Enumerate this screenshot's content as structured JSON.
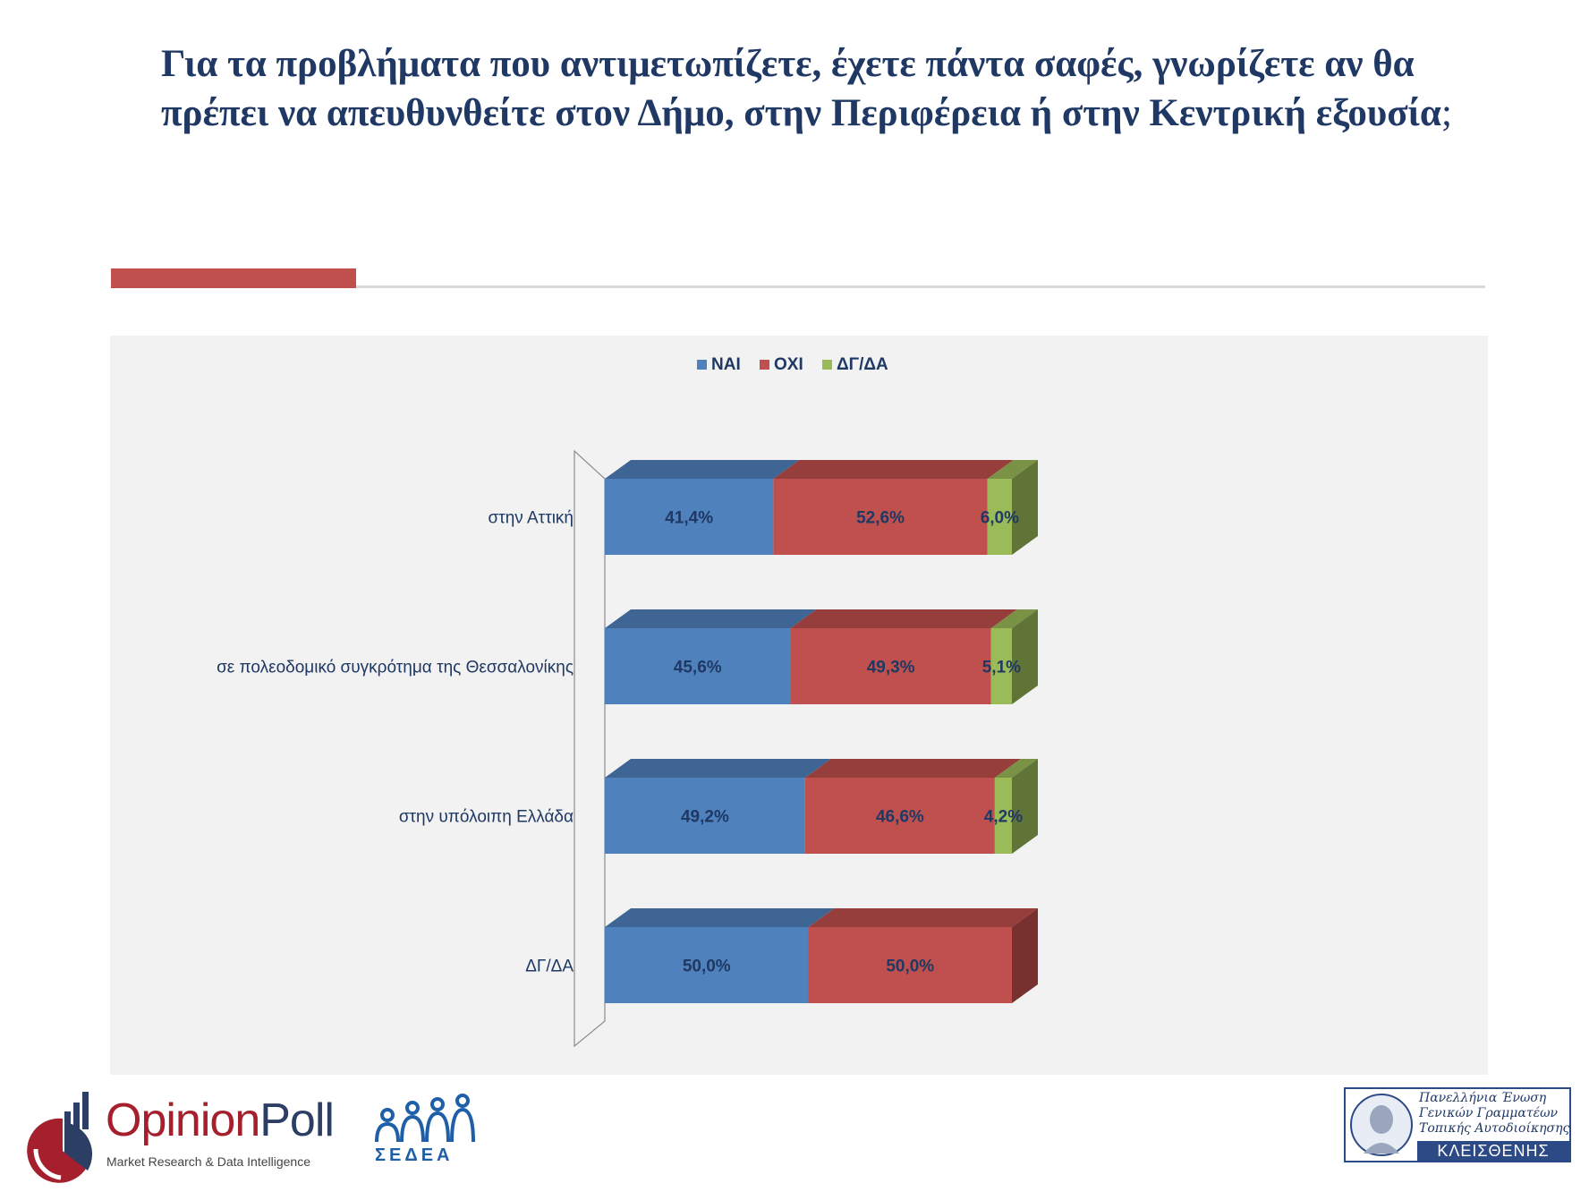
{
  "title": {
    "text": "Για τα προβλήματα που αντιμετωπίζετε, έχετε πάντα σαφές, γνωρίζετε αν θα πρέπει να απευθυνθείτε στον Δήμο, στην Περιφέρεια ή στην Κεντρική εξουσία",
    "qmark": ";"
  },
  "chart_data": {
    "type": "bar",
    "orientation": "horizontal",
    "stacked": "100%",
    "three_d": true,
    "legend_position": "top",
    "categories": [
      "στην Αττική",
      "σε πολεοδομικό συγκρότημα της Θεσσαλονίκης",
      "στην υπόλοιπη Ελλάδα",
      "ΔΓ/ΔΑ"
    ],
    "series": [
      {
        "name": "ΝΑΙ",
        "color": "#4f81bd",
        "values": [
          41.4,
          45.6,
          49.2,
          50.0
        ],
        "labels": [
          "41,4%",
          "45,6%",
          "49,2%",
          "50,0%"
        ]
      },
      {
        "name": "ΟΧΙ",
        "color": "#c0504d",
        "values": [
          52.6,
          49.3,
          46.6,
          50.0
        ],
        "labels": [
          "52,6%",
          "49,3%",
          "46,6%",
          "50,0%"
        ]
      },
      {
        "name": "ΔΓ/ΔΑ",
        "color": "#9bbb59",
        "values": [
          6.0,
          5.1,
          4.2,
          0
        ],
        "labels": [
          "6,0%",
          "5,1%",
          "4,2%",
          ""
        ]
      }
    ]
  },
  "logos": {
    "opinionpoll": {
      "name_a": "Opinion",
      "name_b": "Poll",
      "tagline": "Market Research & Data Intelligence"
    },
    "sedea": {
      "text": "ΣΕΔΕΑ"
    },
    "kleisthenis": {
      "line1": "Πανελλήνια Ένωση",
      "line2": "Γενικών Γραμματέων",
      "line3": "Τοπικής Αυτοδιοίκησης",
      "name": "ΚΛΕΙΣΘΕΝΗΣ"
    }
  }
}
